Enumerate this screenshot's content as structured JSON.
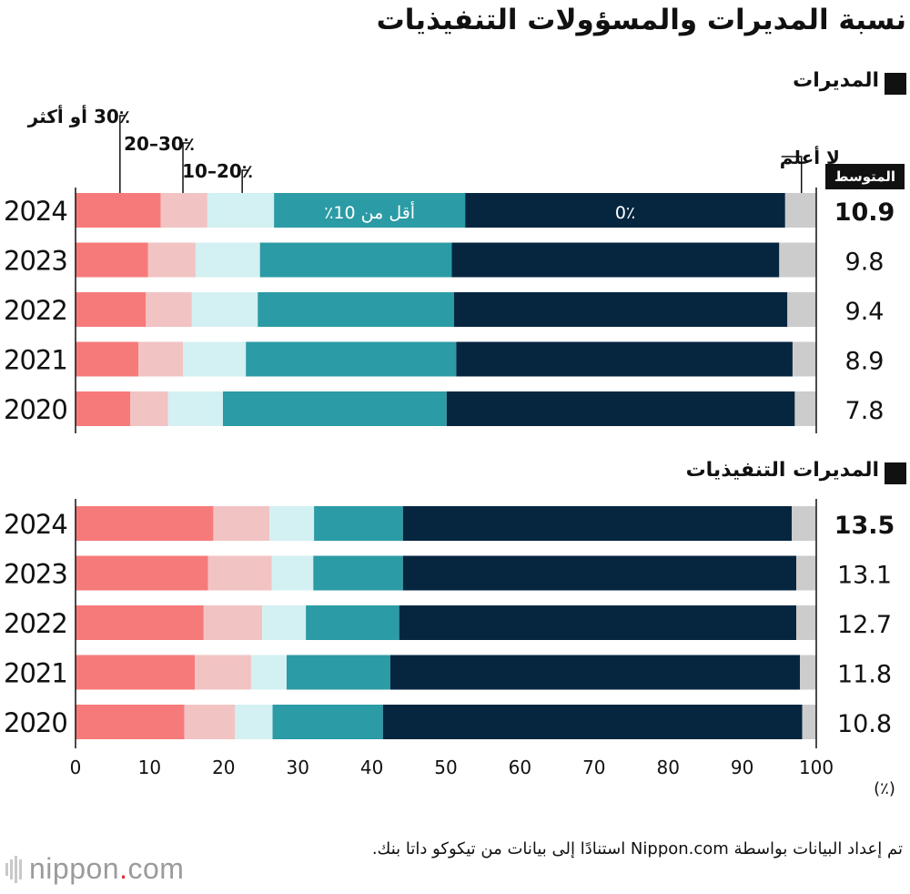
{
  "title": "نسبة المديرات والمسؤولات التنفيذيات",
  "avg_label": "المتوسط",
  "unit_label": "(٪)",
  "source": "تم إعداد البيانات بواسطة Nippon.com استنادًا إلى بيانات من تيكوكو داتا بنك.",
  "logo": {
    "name": "nippon",
    "dot": ".",
    "suffix": "com"
  },
  "colors": {
    "c30plus": "#f77a7a",
    "c20_30": "#f2c3c3",
    "c10_20": "#d3f0f2",
    "cless10": "#2b9ba5",
    "c0": "#062640",
    "unknown": "#cccccc"
  },
  "chart_data": {
    "type": "bar",
    "orientation": "horizontal",
    "stacked": true,
    "xlim": [
      0,
      100
    ],
    "xticks": [
      0,
      10,
      20,
      30,
      40,
      50,
      60,
      70,
      80,
      90,
      100
    ],
    "legend": [
      {
        "key": "c30plus",
        "label": "30٪ أو أكثر"
      },
      {
        "key": "c20_30",
        "label": "20–30٪"
      },
      {
        "key": "c10_20",
        "label": "10–20٪"
      },
      {
        "key": "cless10",
        "label": "أقل من 10٪"
      },
      {
        "key": "c0",
        "label": "0٪"
      },
      {
        "key": "unknown",
        "label": "لا أعلم"
      }
    ],
    "panels": [
      {
        "name": "المديرات",
        "rows": [
          {
            "year": "2024",
            "avg": "10.9",
            "values": [
              11.5,
              6.3,
              9.0,
              25.8,
              43.2,
              4.2
            ]
          },
          {
            "year": "2023",
            "avg": "9.8",
            "values": [
              9.8,
              6.4,
              8.7,
              25.9,
              44.2,
              5.0
            ]
          },
          {
            "year": "2022",
            "avg": "9.4",
            "values": [
              9.5,
              6.2,
              8.9,
              26.5,
              45.0,
              3.9
            ]
          },
          {
            "year": "2021",
            "avg": "8.9",
            "values": [
              8.5,
              6.0,
              8.5,
              28.4,
              45.4,
              3.2
            ]
          },
          {
            "year": "2020",
            "avg": "7.8",
            "values": [
              7.4,
              5.1,
              7.4,
              30.2,
              47.0,
              2.9
            ]
          }
        ]
      },
      {
        "name": "المديرات التنفيذيات",
        "rows": [
          {
            "year": "2024",
            "avg": "13.5",
            "values": [
              18.6,
              7.6,
              6.0,
              12.0,
              52.5,
              3.3
            ]
          },
          {
            "year": "2023",
            "avg": "13.1",
            "values": [
              17.9,
              8.6,
              5.6,
              12.1,
              53.1,
              2.7
            ]
          },
          {
            "year": "2022",
            "avg": "12.7",
            "values": [
              17.3,
              7.9,
              5.9,
              12.6,
              53.6,
              2.7
            ]
          },
          {
            "year": "2021",
            "avg": "11.8",
            "values": [
              16.1,
              7.6,
              4.8,
              14.0,
              55.3,
              2.2
            ]
          },
          {
            "year": "2020",
            "avg": "10.8",
            "values": [
              14.7,
              6.8,
              5.1,
              14.9,
              56.6,
              1.9
            ]
          }
        ]
      }
    ]
  }
}
